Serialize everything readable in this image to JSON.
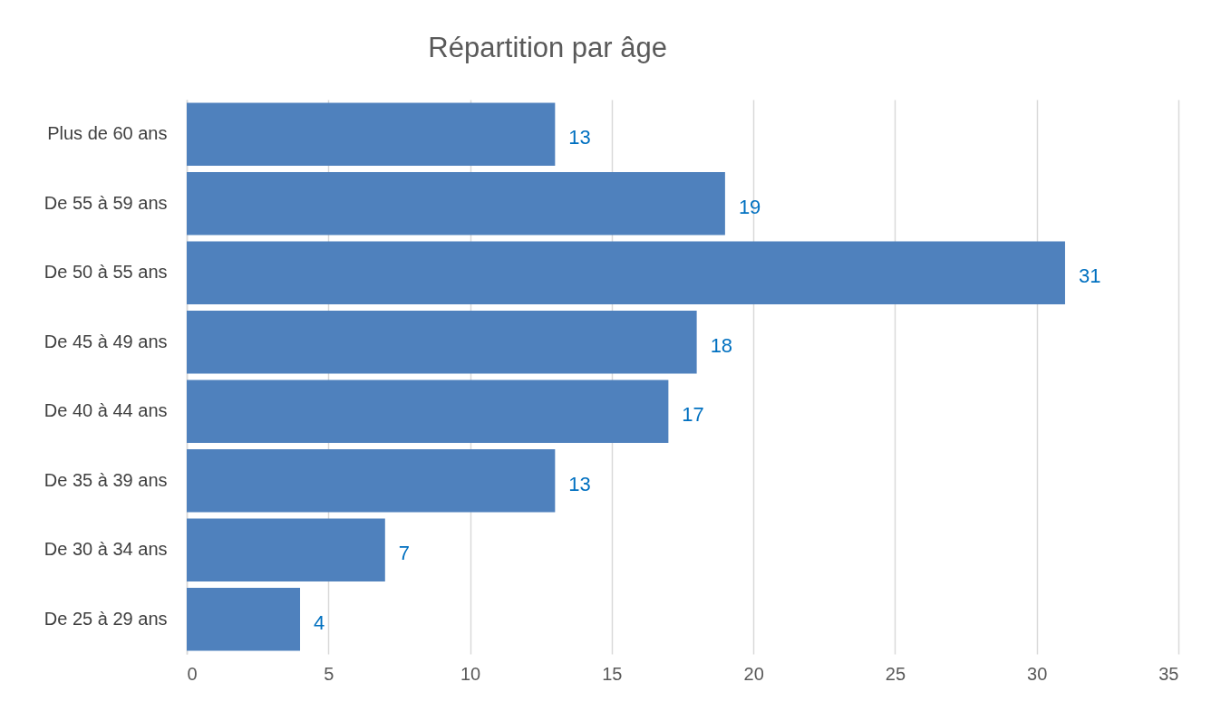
{
  "chart_data": {
    "type": "bar",
    "orientation": "horizontal",
    "title": "Répartition par âge",
    "categories": [
      "Plus de 60 ans",
      "De 55 à 59 ans",
      "De 50 à 55 ans",
      "De 45 à 49 ans",
      "De 40 à 44 ans",
      "De 35 à 39 ans",
      "De 30 à 34 ans",
      "De 25 à 29 ans"
    ],
    "values": [
      13,
      19,
      31,
      18,
      17,
      13,
      7,
      4
    ],
    "color": "#4f81bd",
    "xlim": [
      0,
      35
    ],
    "xticks": [
      0,
      5,
      10,
      15,
      20,
      25,
      30,
      35
    ],
    "grid": "x",
    "data_labels": true
  }
}
